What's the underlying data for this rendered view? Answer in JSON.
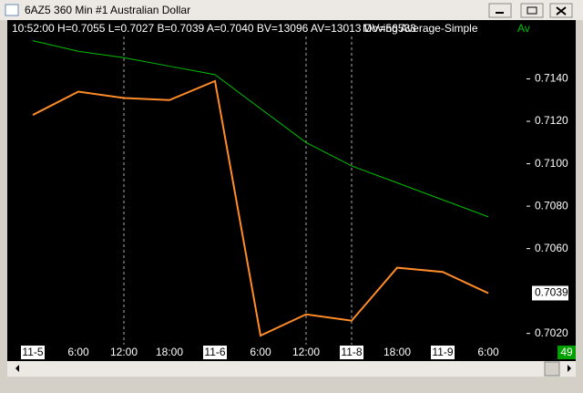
{
  "window": {
    "title": "6AZ5  360 Min  #1  Australian Dollar"
  },
  "chart_data": {
    "type": "line",
    "info": "10:52:00 H=0.7055 L=0.7027 B=0.7039 A=0.7040 BV=13096 AV=13013 DV=56533",
    "indicator": "Moving Average-Simple",
    "categories": [
      "11-5",
      "6:00",
      "12:00",
      "18:00",
      "11-6",
      "6:00",
      "12:00",
      "11-8",
      "18:00",
      "11-9",
      "6:00"
    ],
    "series": [
      {
        "color": "#ff8c28",
        "values": [
          0.7123,
          0.7134,
          0.7131,
          0.713,
          0.7139,
          0.7019,
          0.7029,
          0.7026,
          0.7051,
          0.7049,
          0.7039
        ]
      },
      {
        "name": "Av",
        "color": "#00c000",
        "values": [
          0.7158,
          0.7153,
          0.715,
          0.7146,
          0.7142,
          0.7126,
          0.711,
          0.7099,
          0.7091,
          0.7083,
          0.7075
        ]
      }
    ],
    "ylim": [
      0.7016,
      0.716
    ],
    "yticks": [
      {
        "value": 0.714,
        "label": "0.7140"
      },
      {
        "value": 0.712,
        "label": "0.7120"
      },
      {
        "value": 0.71,
        "label": "0.7100"
      },
      {
        "value": 0.708,
        "label": "0.7080"
      },
      {
        "value": 0.706,
        "label": "0.7060"
      },
      {
        "value": 0.702,
        "label": "0.7020"
      }
    ],
    "last_price": 0.7039,
    "corner_label": "49"
  }
}
